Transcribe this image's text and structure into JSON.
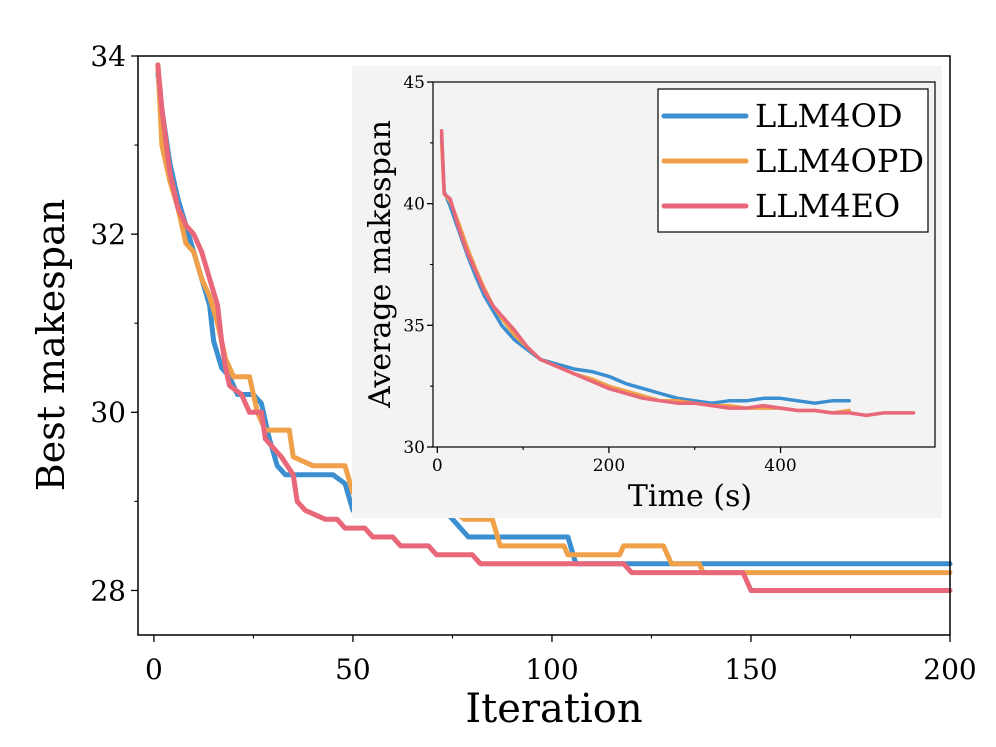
{
  "chart_data": [
    {
      "type": "line",
      "title": "",
      "xlabel": "Iteration",
      "ylabel": "Best makespan",
      "xlim": [
        -4,
        200
      ],
      "ylim": [
        27.5,
        34
      ],
      "xticks": [
        0,
        50,
        100,
        150,
        200
      ],
      "yticks": [
        28,
        30,
        32,
        34
      ],
      "series": [
        {
          "name": "LLM4OD",
          "color": "#3b8fd0",
          "points": [
            [
              1,
              33.8
            ],
            [
              2,
              33.4
            ],
            [
              4,
              32.8
            ],
            [
              6,
              32.4
            ],
            [
              8,
              32.1
            ],
            [
              10,
              31.8
            ],
            [
              12,
              31.5
            ],
            [
              14,
              31.2
            ],
            [
              15,
              30.8
            ],
            [
              17,
              30.5
            ],
            [
              19,
              30.4
            ],
            [
              21,
              30.2
            ],
            [
              25,
              30.2
            ],
            [
              27,
              30.1
            ],
            [
              29,
              29.7
            ],
            [
              31,
              29.4
            ],
            [
              33,
              29.3
            ],
            [
              45,
              29.3
            ],
            [
              48,
              29.2
            ],
            [
              50,
              28.9
            ],
            [
              58,
              28.9
            ],
            [
              73,
              28.9
            ],
            [
              75,
              28.8
            ],
            [
              79,
              28.6
            ],
            [
              104,
              28.6
            ],
            [
              106,
              28.3
            ],
            [
              200,
              28.3
            ]
          ]
        },
        {
          "name": "LLM4OPD",
          "color": "#f0a048",
          "points": [
            [
              1,
              33.9
            ],
            [
              2,
              33.0
            ],
            [
              4,
              32.6
            ],
            [
              6,
              32.3
            ],
            [
              8,
              31.9
            ],
            [
              10,
              31.8
            ],
            [
              12,
              31.5
            ],
            [
              14,
              31.3
            ],
            [
              16,
              31.0
            ],
            [
              18,
              30.6
            ],
            [
              20,
              30.4
            ],
            [
              24,
              30.4
            ],
            [
              26,
              30.0
            ],
            [
              28,
              29.8
            ],
            [
              34,
              29.8
            ],
            [
              35,
              29.5
            ],
            [
              40,
              29.4
            ],
            [
              48,
              29.4
            ],
            [
              50,
              29.1
            ],
            [
              52,
              29.0
            ],
            [
              55,
              28.9
            ],
            [
              75,
              28.9
            ],
            [
              78,
              28.8
            ],
            [
              85,
              28.8
            ],
            [
              87,
              28.5
            ],
            [
              103,
              28.5
            ],
            [
              104,
              28.4
            ],
            [
              117,
              28.4
            ],
            [
              118,
              28.5
            ],
            [
              128,
              28.5
            ],
            [
              130,
              28.3
            ],
            [
              137,
              28.3
            ],
            [
              138,
              28.2
            ],
            [
              200,
              28.2
            ]
          ]
        },
        {
          "name": "LLM4EO",
          "color": "#e8687a",
          "points": [
            [
              1,
              33.9
            ],
            [
              2,
              33.4
            ],
            [
              4,
              32.7
            ],
            [
              6,
              32.3
            ],
            [
              8,
              32.1
            ],
            [
              10,
              32.0
            ],
            [
              12,
              31.8
            ],
            [
              14,
              31.5
            ],
            [
              16,
              31.2
            ],
            [
              17,
              30.8
            ],
            [
              18,
              30.5
            ],
            [
              19,
              30.3
            ],
            [
              22,
              30.2
            ],
            [
              24,
              30.0
            ],
            [
              27,
              30.0
            ],
            [
              28,
              29.7
            ],
            [
              30,
              29.6
            ],
            [
              32,
              29.5
            ],
            [
              35,
              29.3
            ],
            [
              36,
              29.0
            ],
            [
              38,
              28.9
            ],
            [
              43,
              28.8
            ],
            [
              46,
              28.8
            ],
            [
              48,
              28.7
            ],
            [
              53,
              28.7
            ],
            [
              55,
              28.6
            ],
            [
              60,
              28.6
            ],
            [
              62,
              28.5
            ],
            [
              69,
              28.5
            ],
            [
              71,
              28.4
            ],
            [
              80,
              28.4
            ],
            [
              82,
              28.3
            ],
            [
              118,
              28.3
            ],
            [
              120,
              28.2
            ],
            [
              148,
              28.2
            ],
            [
              150,
              28.0
            ],
            [
              200,
              28.0
            ]
          ]
        }
      ]
    },
    {
      "type": "line",
      "title": "",
      "xlabel": "Time (s)",
      "ylabel": "Average makespan",
      "xlim": [
        -5,
        580
      ],
      "ylim": [
        30,
        45
      ],
      "xticks": [
        0,
        200,
        400
      ],
      "yticks": [
        30,
        35,
        40,
        45
      ],
      "legend": "top-right",
      "series": [
        {
          "name": "LLM4OD",
          "color": "#3b8fd0",
          "points": [
            [
              5,
              42.8
            ],
            [
              8,
              40.5
            ],
            [
              15,
              39.9
            ],
            [
              25,
              38.9
            ],
            [
              35,
              37.9
            ],
            [
              45,
              37.0
            ],
            [
              55,
              36.2
            ],
            [
              65,
              35.6
            ],
            [
              75,
              35.0
            ],
            [
              90,
              34.4
            ],
            [
              105,
              34.0
            ],
            [
              120,
              33.6
            ],
            [
              140,
              33.4
            ],
            [
              160,
              33.2
            ],
            [
              180,
              33.1
            ],
            [
              200,
              32.9
            ],
            [
              220,
              32.6
            ],
            [
              240,
              32.4
            ],
            [
              260,
              32.2
            ],
            [
              280,
              32.0
            ],
            [
              300,
              31.9
            ],
            [
              320,
              31.8
            ],
            [
              340,
              31.9
            ],
            [
              360,
              31.9
            ],
            [
              380,
              32.0
            ],
            [
              400,
              32.0
            ],
            [
              420,
              31.9
            ],
            [
              440,
              31.8
            ],
            [
              460,
              31.9
            ],
            [
              480,
              31.9
            ]
          ]
        },
        {
          "name": "LLM4OPD",
          "color": "#f0a048",
          "points": [
            [
              5,
              42.5
            ],
            [
              8,
              40.4
            ],
            [
              15,
              40.1
            ],
            [
              25,
              39.2
            ],
            [
              35,
              38.2
            ],
            [
              45,
              37.3
            ],
            [
              55,
              36.5
            ],
            [
              65,
              35.8
            ],
            [
              75,
              35.3
            ],
            [
              90,
              34.6
            ],
            [
              105,
              34.1
            ],
            [
              120,
              33.6
            ],
            [
              140,
              33.3
            ],
            [
              160,
              33.0
            ],
            [
              180,
              32.8
            ],
            [
              200,
              32.5
            ],
            [
              220,
              32.3
            ],
            [
              240,
              32.1
            ],
            [
              260,
              31.9
            ],
            [
              280,
              31.9
            ],
            [
              300,
              31.8
            ],
            [
              320,
              31.7
            ],
            [
              340,
              31.7
            ],
            [
              360,
              31.6
            ],
            [
              380,
              31.6
            ],
            [
              400,
              31.6
            ],
            [
              420,
              31.5
            ],
            [
              440,
              31.5
            ],
            [
              460,
              31.4
            ],
            [
              480,
              31.5
            ]
          ]
        },
        {
          "name": "LLM4EO",
          "color": "#e8687a",
          "points": [
            [
              5,
              43.0
            ],
            [
              8,
              40.4
            ],
            [
              15,
              40.2
            ],
            [
              25,
              39.0
            ],
            [
              35,
              38.0
            ],
            [
              45,
              37.2
            ],
            [
              55,
              36.4
            ],
            [
              65,
              35.8
            ],
            [
              75,
              35.4
            ],
            [
              90,
              34.8
            ],
            [
              105,
              34.1
            ],
            [
              120,
              33.6
            ],
            [
              140,
              33.3
            ],
            [
              160,
              33.0
            ],
            [
              180,
              32.7
            ],
            [
              200,
              32.4
            ],
            [
              220,
              32.2
            ],
            [
              240,
              32.0
            ],
            [
              260,
              31.9
            ],
            [
              280,
              31.8
            ],
            [
              300,
              31.8
            ],
            [
              320,
              31.7
            ],
            [
              340,
              31.6
            ],
            [
              360,
              31.6
            ],
            [
              380,
              31.7
            ],
            [
              400,
              31.6
            ],
            [
              420,
              31.5
            ],
            [
              440,
              31.5
            ],
            [
              460,
              31.4
            ],
            [
              480,
              31.4
            ],
            [
              500,
              31.3
            ],
            [
              520,
              31.4
            ],
            [
              540,
              31.4
            ],
            [
              555,
              31.4
            ]
          ]
        }
      ]
    }
  ]
}
